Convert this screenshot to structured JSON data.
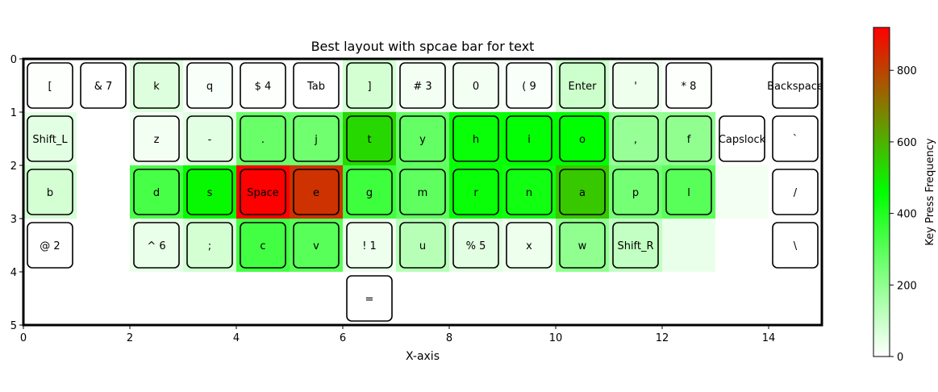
{
  "chart_data": {
    "type": "heatmap",
    "title": "Best layout with spcae bar for text",
    "xlabel": "X-axis",
    "ylabel": "",
    "xlim": [
      0,
      15
    ],
    "ylim": [
      5,
      0
    ],
    "x_ticks": [
      "0",
      "2",
      "4",
      "6",
      "8",
      "10",
      "12",
      "14"
    ],
    "y_ticks": [
      "0",
      "1",
      "2",
      "3",
      "4",
      "5"
    ],
    "colorbar": {
      "label": "Key Press Frequency",
      "range": [
        0,
        920
      ],
      "ticks": [
        "0",
        "200",
        "400",
        "600",
        "800"
      ],
      "colors": [
        "#ffffff",
        "#00ff00",
        "#ff0000"
      ]
    },
    "keys": [
      {
        "label": "[",
        "col": 0,
        "row": 0,
        "freq": 5
      },
      {
        "label": "& 7",
        "col": 1,
        "row": 0,
        "freq": 2
      },
      {
        "label": "k",
        "col": 2,
        "row": 0,
        "freq": 60
      },
      {
        "label": "q",
        "col": 3,
        "row": 0,
        "freq": 10
      },
      {
        "label": "$ 4",
        "col": 4,
        "row": 0,
        "freq": 5
      },
      {
        "label": "Tab",
        "col": 5,
        "row": 0,
        "freq": 2
      },
      {
        "label": "]",
        "col": 6,
        "row": 0,
        "freq": 80
      },
      {
        "label": "# 3",
        "col": 7,
        "row": 0,
        "freq": 20
      },
      {
        "label": "0",
        "col": 8,
        "row": 0,
        "freq": 20
      },
      {
        "label": "( 9",
        "col": 9,
        "row": 0,
        "freq": 10
      },
      {
        "label": "Enter",
        "col": 10,
        "row": 0,
        "freq": 90
      },
      {
        "label": "'",
        "col": 11,
        "row": 0,
        "freq": 30
      },
      {
        "label": "* 8",
        "col": 12,
        "row": 0,
        "freq": 5
      },
      {
        "label": "Backspace",
        "col": 14,
        "row": 0,
        "freq": 0
      },
      {
        "label": "Shift_L",
        "col": 0,
        "row": 1,
        "freq": 50
      },
      {
        "label": "z",
        "col": 2,
        "row": 1,
        "freq": 20
      },
      {
        "label": "-",
        "col": 3,
        "row": 1,
        "freq": 50
      },
      {
        "label": ".",
        "col": 4,
        "row": 1,
        "freq": 270
      },
      {
        "label": "j",
        "col": 5,
        "row": 1,
        "freq": 260
      },
      {
        "label": "t",
        "col": 6,
        "row": 1,
        "freq": 530
      },
      {
        "label": "y",
        "col": 7,
        "row": 1,
        "freq": 280
      },
      {
        "label": "h",
        "col": 8,
        "row": 1,
        "freq": 445
      },
      {
        "label": "i",
        "col": 9,
        "row": 1,
        "freq": 455
      },
      {
        "label": "o",
        "col": 10,
        "row": 1,
        "freq": 460
      },
      {
        "label": ",",
        "col": 11,
        "row": 1,
        "freq": 190
      },
      {
        "label": "f",
        "col": 12,
        "row": 1,
        "freq": 200
      },
      {
        "label": "Capslock",
        "col": 13,
        "row": 1,
        "freq": 0
      },
      {
        "label": "`",
        "col": 14,
        "row": 1,
        "freq": 0
      },
      {
        "label": "b",
        "col": 0,
        "row": 2,
        "freq": 80
      },
      {
        "label": "d",
        "col": 2,
        "row": 2,
        "freq": 330
      },
      {
        "label": "s",
        "col": 3,
        "row": 2,
        "freq": 470
      },
      {
        "label": "Space",
        "col": 4,
        "row": 2,
        "freq": 920
      },
      {
        "label": "e",
        "col": 5,
        "row": 2,
        "freq": 830
      },
      {
        "label": "g",
        "col": 6,
        "row": 2,
        "freq": 350
      },
      {
        "label": "m",
        "col": 7,
        "row": 2,
        "freq": 290
      },
      {
        "label": "r",
        "col": 8,
        "row": 2,
        "freq": 445
      },
      {
        "label": "n",
        "col": 9,
        "row": 2,
        "freq": 430
      },
      {
        "label": "a",
        "col": 10,
        "row": 2,
        "freq": 560
      },
      {
        "label": "p",
        "col": 11,
        "row": 2,
        "freq": 250
      },
      {
        "label": "l",
        "col": 12,
        "row": 2,
        "freq": 300
      },
      {
        "label": "/",
        "col": 14,
        "row": 2,
        "freq": 0
      },
      {
        "label": "@ 2",
        "col": 0,
        "row": 3,
        "freq": 0
      },
      {
        "label": "^ 6",
        "col": 2,
        "row": 3,
        "freq": 40
      },
      {
        "label": ";",
        "col": 3,
        "row": 3,
        "freq": 80
      },
      {
        "label": "c",
        "col": 4,
        "row": 3,
        "freq": 340
      },
      {
        "label": "v",
        "col": 5,
        "row": 3,
        "freq": 300
      },
      {
        "label": "! 1",
        "col": 6,
        "row": 3,
        "freq": 30
      },
      {
        "label": "u",
        "col": 7,
        "row": 3,
        "freq": 130
      },
      {
        "label": "% 5",
        "col": 8,
        "row": 3,
        "freq": 50
      },
      {
        "label": "x",
        "col": 9,
        "row": 3,
        "freq": 30
      },
      {
        "label": "w",
        "col": 10,
        "row": 3,
        "freq": 200
      },
      {
        "label": "Shift_R",
        "col": 11,
        "row": 3,
        "freq": 110
      },
      {
        "label": "\\",
        "col": 14,
        "row": 3,
        "freq": 0
      },
      {
        "label": "=",
        "col": 6,
        "row": 4,
        "freq": 0
      }
    ],
    "empty_cells": [
      {
        "col": 13,
        "row": 2,
        "freq": 20
      },
      {
        "col": 12,
        "row": 3,
        "freq": 40
      }
    ]
  }
}
